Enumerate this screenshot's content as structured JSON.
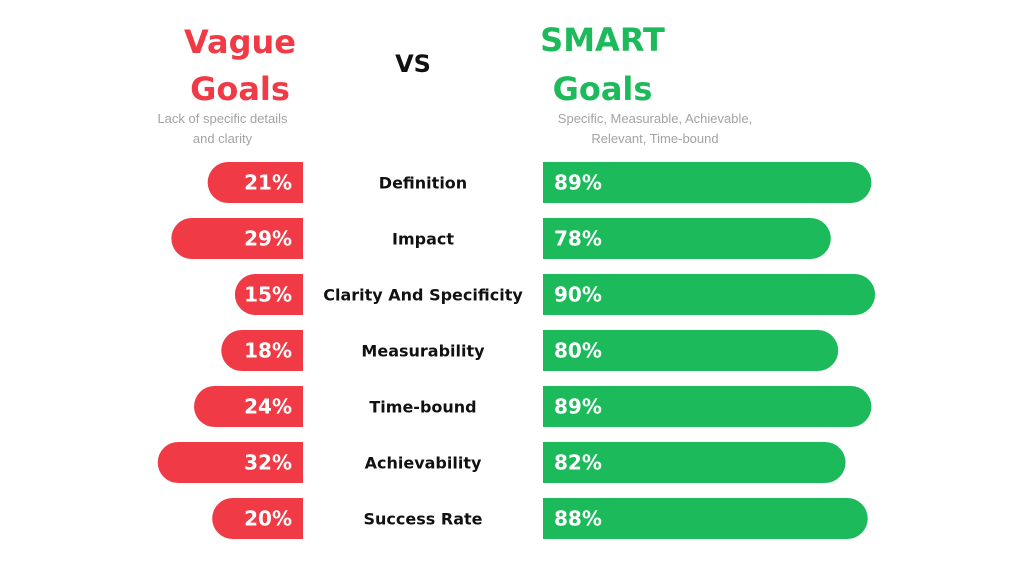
{
  "header": {
    "left_title_line1": "Vague",
    "left_title_line2": "Goals",
    "left_subtitle_line1": "Lack of specific details",
    "left_subtitle_line2": "and clarity",
    "vs": "VS",
    "right_title_line1": "SMART",
    "right_title_line2": "Goals",
    "right_subtitle_line1": "Specific, Measurable, Achievable,",
    "right_subtitle_line2": "Relevant, Time-bound"
  },
  "colors": {
    "vague": "#f03a45",
    "smart": "#1dba5c"
  },
  "chart_data": {
    "type": "bar",
    "orientation": "horizontal-diverging",
    "categories": [
      "Definition",
      "Impact",
      "Clarity And Specificity",
      "Measurability",
      "Time-bound",
      "Achievability",
      "Success Rate"
    ],
    "series": [
      {
        "name": "Vague Goals",
        "values": [
          21,
          29,
          15,
          18,
          24,
          32,
          20
        ],
        "labels": [
          "21%",
          "29%",
          "15%",
          "18%",
          "24%",
          "32%",
          "20%"
        ]
      },
      {
        "name": "SMART Goals",
        "values": [
          89,
          78,
          90,
          80,
          89,
          82,
          88
        ],
        "labels": [
          "89%",
          "78%",
          "90%",
          "80%",
          "89%",
          "82%",
          "88%"
        ]
      }
    ],
    "unit": "%",
    "grid": false
  }
}
